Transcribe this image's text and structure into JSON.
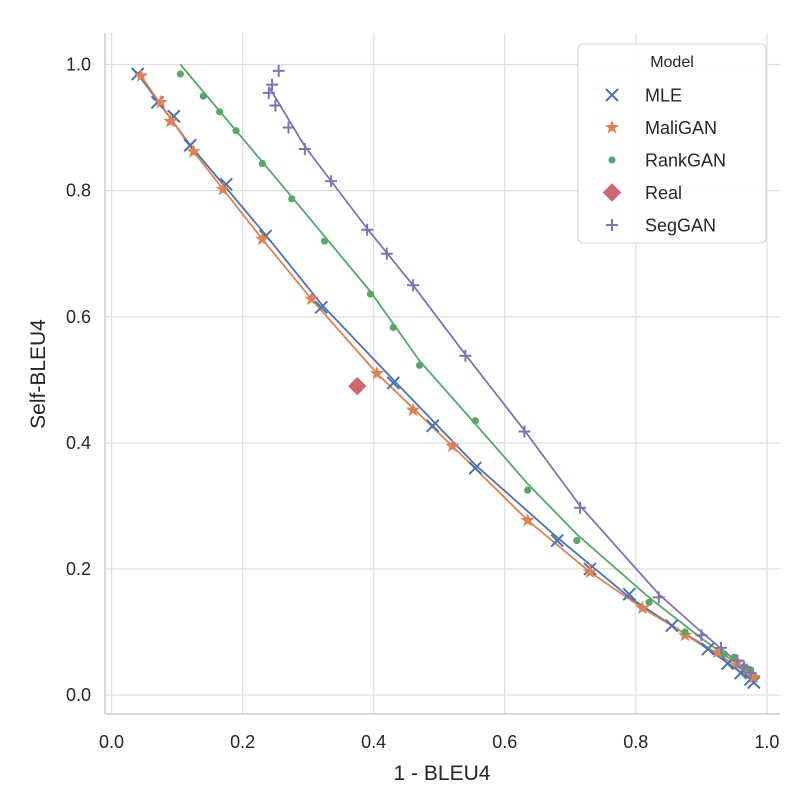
{
  "chart_data": {
    "type": "scatter",
    "xlabel": "1 - BLEU4",
    "ylabel": "Self-BLEU4",
    "xlim": [
      -0.01,
      1.02
    ],
    "ylim": [
      -0.03,
      1.05
    ],
    "xticks": [
      "0.0",
      "0.2",
      "0.4",
      "0.6",
      "0.8",
      "1.0"
    ],
    "yticks": [
      "0.0",
      "0.2",
      "0.4",
      "0.6",
      "0.8",
      "1.0"
    ],
    "grid": true,
    "legend": {
      "title": "Model",
      "position": "top-right"
    },
    "series": [
      {
        "name": "MLE",
        "marker": "x",
        "color": "#4c72b0",
        "points": [
          [
            0.04,
            0.985
          ],
          [
            0.07,
            0.94
          ],
          [
            0.095,
            0.918
          ],
          [
            0.12,
            0.872
          ],
          [
            0.175,
            0.81
          ],
          [
            0.235,
            0.728
          ],
          [
            0.32,
            0.615
          ],
          [
            0.43,
            0.495
          ],
          [
            0.49,
            0.427
          ],
          [
            0.555,
            0.36
          ],
          [
            0.68,
            0.245
          ],
          [
            0.73,
            0.2
          ],
          [
            0.79,
            0.16
          ],
          [
            0.855,
            0.11
          ],
          [
            0.91,
            0.073
          ],
          [
            0.94,
            0.05
          ],
          [
            0.96,
            0.035
          ],
          [
            0.975,
            0.025
          ],
          [
            0.98,
            0.02
          ]
        ],
        "line": [
          [
            0.04,
            0.985
          ],
          [
            0.12,
            0.872
          ],
          [
            0.235,
            0.73
          ],
          [
            0.32,
            0.62
          ],
          [
            0.43,
            0.5
          ],
          [
            0.555,
            0.365
          ],
          [
            0.68,
            0.25
          ],
          [
            0.79,
            0.155
          ],
          [
            0.9,
            0.08
          ],
          [
            0.98,
            0.022
          ]
        ]
      },
      {
        "name": "MaliGAN",
        "marker": "star",
        "color": "#dd8452",
        "points": [
          [
            0.045,
            0.982
          ],
          [
            0.075,
            0.94
          ],
          [
            0.09,
            0.91
          ],
          [
            0.125,
            0.862
          ],
          [
            0.17,
            0.802
          ],
          [
            0.23,
            0.723
          ],
          [
            0.305,
            0.628
          ],
          [
            0.405,
            0.51
          ],
          [
            0.46,
            0.452
          ],
          [
            0.52,
            0.395
          ],
          [
            0.635,
            0.277
          ],
          [
            0.73,
            0.195
          ],
          [
            0.81,
            0.138
          ],
          [
            0.875,
            0.095
          ],
          [
            0.925,
            0.068
          ],
          [
            0.955,
            0.052
          ],
          [
            0.97,
            0.04
          ],
          [
            0.98,
            0.028
          ]
        ],
        "line": [
          [
            0.045,
            0.982
          ],
          [
            0.125,
            0.862
          ],
          [
            0.23,
            0.723
          ],
          [
            0.305,
            0.628
          ],
          [
            0.405,
            0.51
          ],
          [
            0.52,
            0.395
          ],
          [
            0.635,
            0.277
          ],
          [
            0.73,
            0.195
          ],
          [
            0.81,
            0.138
          ],
          [
            0.9,
            0.082
          ],
          [
            0.98,
            0.028
          ]
        ]
      },
      {
        "name": "RankGAN",
        "marker": "dot",
        "color": "#55a868",
        "points": [
          [
            0.105,
            0.985
          ],
          [
            0.14,
            0.95
          ],
          [
            0.165,
            0.925
          ],
          [
            0.19,
            0.895
          ],
          [
            0.23,
            0.843
          ],
          [
            0.275,
            0.787
          ],
          [
            0.325,
            0.72
          ],
          [
            0.395,
            0.636
          ],
          [
            0.43,
            0.583
          ],
          [
            0.47,
            0.523
          ],
          [
            0.555,
            0.435
          ],
          [
            0.635,
            0.325
          ],
          [
            0.71,
            0.245
          ],
          [
            0.82,
            0.147
          ],
          [
            0.875,
            0.1
          ],
          [
            0.935,
            0.065
          ],
          [
            0.95,
            0.06
          ],
          [
            0.965,
            0.045
          ],
          [
            0.975,
            0.04
          ]
        ],
        "line": [
          [
            0.105,
            1.0
          ],
          [
            0.19,
            0.895
          ],
          [
            0.275,
            0.79
          ],
          [
            0.395,
            0.64
          ],
          [
            0.47,
            0.53
          ],
          [
            0.555,
            0.43
          ],
          [
            0.635,
            0.335
          ],
          [
            0.71,
            0.255
          ],
          [
            0.82,
            0.155
          ],
          [
            0.9,
            0.09
          ],
          [
            0.98,
            0.03
          ]
        ]
      },
      {
        "name": "Real",
        "marker": "diamond",
        "color": "#c44e52",
        "points": [
          [
            0.375,
            0.49
          ]
        ],
        "line": []
      },
      {
        "name": "SegGAN",
        "marker": "plus",
        "color": "#8172b3",
        "points": [
          [
            0.255,
            0.99
          ],
          [
            0.245,
            0.968
          ],
          [
            0.24,
            0.955
          ],
          [
            0.25,
            0.935
          ],
          [
            0.27,
            0.9
          ],
          [
            0.295,
            0.866
          ],
          [
            0.335,
            0.815
          ],
          [
            0.39,
            0.738
          ],
          [
            0.42,
            0.7
          ],
          [
            0.46,
            0.65
          ],
          [
            0.54,
            0.538
          ],
          [
            0.63,
            0.418
          ],
          [
            0.715,
            0.297
          ],
          [
            0.835,
            0.155
          ],
          [
            0.9,
            0.095
          ],
          [
            0.93,
            0.075
          ],
          [
            0.955,
            0.055
          ],
          [
            0.965,
            0.045
          ],
          [
            0.975,
            0.035
          ]
        ],
        "line": [
          [
            0.24,
            0.965
          ],
          [
            0.295,
            0.87
          ],
          [
            0.39,
            0.74
          ],
          [
            0.46,
            0.65
          ],
          [
            0.54,
            0.54
          ],
          [
            0.63,
            0.42
          ],
          [
            0.715,
            0.3
          ],
          [
            0.835,
            0.16
          ],
          [
            0.9,
            0.1
          ],
          [
            0.98,
            0.03
          ]
        ]
      }
    ]
  }
}
